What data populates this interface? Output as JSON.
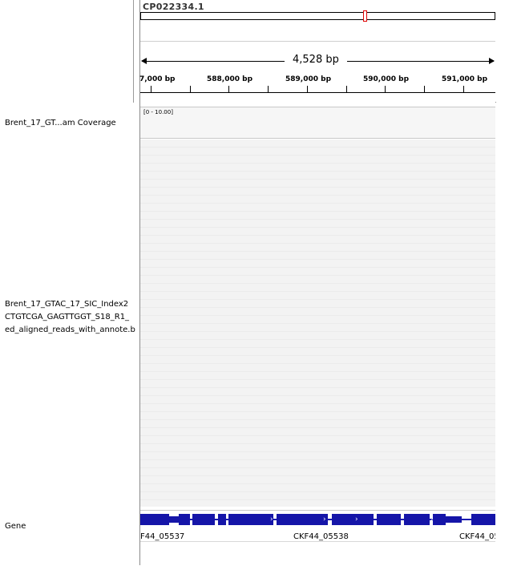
{
  "chromosome": {
    "name": "CP022334.1"
  },
  "ruler": {
    "span_label": "4,528 bp",
    "ticks": [
      "7,000 bp",
      "588,000 bp",
      "589,000 bp",
      "590,000 bp",
      "591,000 bp"
    ]
  },
  "tracks": {
    "coverage": {
      "name": "Brent_17_GT...am Coverage",
      "range": "[0 - 10.00]"
    },
    "alignment": {
      "name_lines": [
        "Brent_17_GTAC_17_SIC_Index2",
        "CTGTCGA_GAGTTGGT_S18_R1_",
        "ed_aligned_reads_with_annote.b"
      ]
    },
    "gene": {
      "name": "Gene",
      "features": [
        "F44_05537",
        "CKF44_05538",
        "CKF44_05"
      ],
      "strand_glyph": "›"
    }
  },
  "colors": {
    "gene": "#1515a8",
    "region_marker": "#e00000"
  }
}
